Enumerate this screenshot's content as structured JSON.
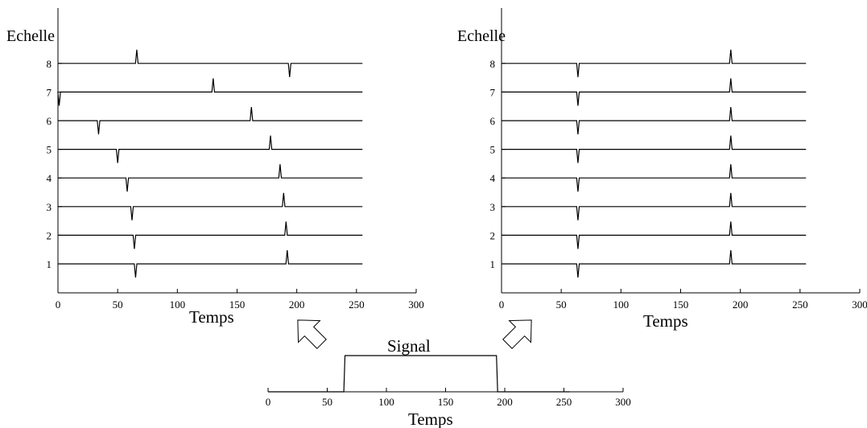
{
  "chart_data": [
    {
      "type": "line",
      "id": "left",
      "ylabel": "Echelle",
      "xlabel": "Temps",
      "xlim": [
        0,
        300
      ],
      "ylim": [
        0,
        8.8
      ],
      "xticks": [
        0,
        50,
        100,
        150,
        200,
        250,
        300
      ],
      "yticks": [
        1,
        2,
        3,
        4,
        5,
        6,
        7,
        8
      ],
      "signal_length": 255,
      "scales": [
        {
          "scale": 1,
          "down_at": 65,
          "up_at": 192
        },
        {
          "scale": 2,
          "down_at": 64,
          "up_at": 191
        },
        {
          "scale": 3,
          "down_at": 62,
          "up_at": 189
        },
        {
          "scale": 4,
          "down_at": 58,
          "up_at": 186
        },
        {
          "scale": 5,
          "down_at": 50,
          "up_at": 178
        },
        {
          "scale": 6,
          "down_at": 34,
          "up_at": 162
        },
        {
          "scale": 7,
          "down_at": 1,
          "up_at": 130
        },
        {
          "scale": 8,
          "down_at": 194,
          "up_at": 66
        }
      ]
    },
    {
      "type": "line",
      "id": "right",
      "ylabel": "Echelle",
      "xlabel": "Temps",
      "xlim": [
        0,
        300
      ],
      "ylim": [
        0,
        8.8
      ],
      "xticks": [
        0,
        50,
        100,
        150,
        200,
        250,
        300
      ],
      "yticks": [
        1,
        2,
        3,
        4,
        5,
        6,
        7,
        8
      ],
      "signal_length": 255,
      "scales": [
        {
          "scale": 1,
          "down_at": 64,
          "up_at": 192
        },
        {
          "scale": 2,
          "down_at": 64,
          "up_at": 192
        },
        {
          "scale": 3,
          "down_at": 64,
          "up_at": 192
        },
        {
          "scale": 4,
          "down_at": 64,
          "up_at": 192
        },
        {
          "scale": 5,
          "down_at": 64,
          "up_at": 192
        },
        {
          "scale": 6,
          "down_at": 64,
          "up_at": 192
        },
        {
          "scale": 7,
          "down_at": 64,
          "up_at": 192
        },
        {
          "scale": 8,
          "down_at": 64,
          "up_at": 192
        }
      ]
    },
    {
      "type": "line",
      "id": "signal",
      "title": "Signal",
      "xlabel": "Temps",
      "xlim": [
        0,
        300
      ],
      "xticks": [
        0,
        50,
        100,
        150,
        200,
        250,
        300
      ],
      "x": [
        0,
        64,
        65,
        193,
        194,
        255
      ],
      "y": [
        0,
        0,
        1,
        1,
        0,
        0
      ]
    }
  ]
}
